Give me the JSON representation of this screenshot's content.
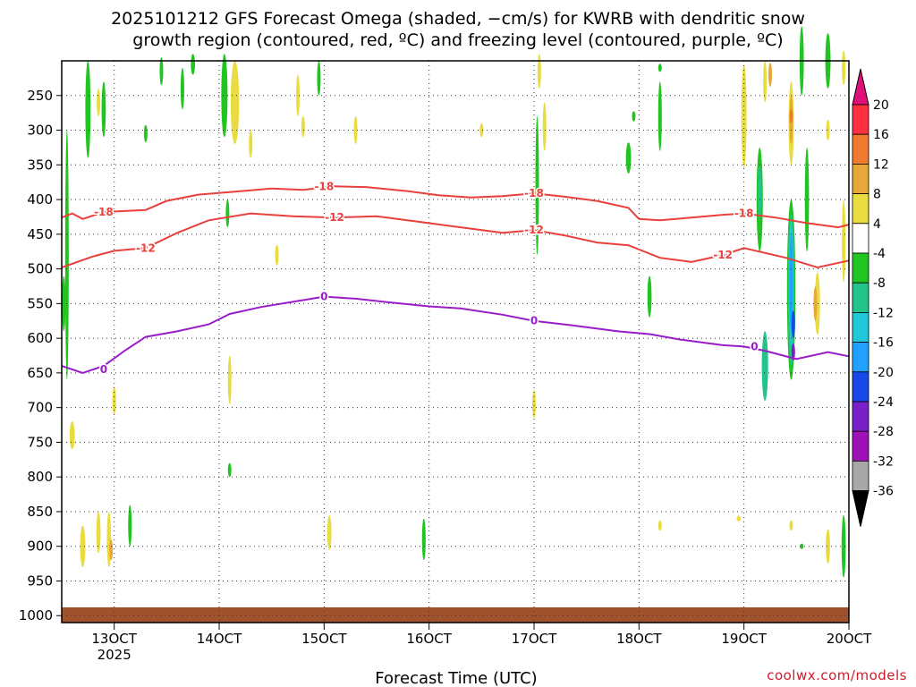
{
  "title": {
    "line1": "2025101212 GFS Forecast Omega (shaded, −cm/s) for KWRB with dendritic snow",
    "line2": "growth region (contoured, red, ºC) and freezing level (contoured, purple, ºC)"
  },
  "credit": "coolwx.com/models",
  "chart_data": {
    "type": "heatmap",
    "xlabel": "Forecast Time (UTC)",
    "x_ticks": [
      {
        "label": "13OCT",
        "sub": "2025",
        "day": 13
      },
      {
        "label": "14OCT",
        "day": 14
      },
      {
        "label": "15OCT",
        "day": 15
      },
      {
        "label": "16OCT",
        "day": 16
      },
      {
        "label": "17OCT",
        "day": 17
      },
      {
        "label": "18OCT",
        "day": 18
      },
      {
        "label": "19OCT",
        "day": 19
      },
      {
        "label": "20OCT",
        "day": 20
      }
    ],
    "xlim": [
      12.5,
      20.0
    ],
    "y_ticks": [
      250,
      300,
      350,
      400,
      450,
      500,
      550,
      600,
      650,
      700,
      750,
      800,
      850,
      900,
      950,
      1000
    ],
    "ylim": [
      200,
      1010
    ],
    "y_axis": "pressure (hPa), inverted",
    "grid": "dotted",
    "colorbar": {
      "levels": [
        20,
        16,
        12,
        8,
        4,
        -4,
        -8,
        -12,
        -16,
        -20,
        -24,
        -28,
        -32,
        -36
      ],
      "colors": [
        "#ff3040",
        "#f07a30",
        "#e8a838",
        "#e8dc40",
        "#ffffff",
        "#22c422",
        "#22c48a",
        "#20c8d8",
        "#20a0ff",
        "#1848e8",
        "#7a20c8",
        "#a010b8",
        "#a8a8a8"
      ],
      "top_arrow_color": "#e0107a",
      "bottom_arrow_color": "#000000"
    },
    "contours": [
      {
        "label": "-18",
        "color": "#e8403c",
        "points": [
          [
            12.5,
            426
          ],
          [
            12.6,
            420
          ],
          [
            12.7,
            428
          ],
          [
            12.9,
            418
          ],
          [
            13.3,
            415
          ],
          [
            13.5,
            402
          ],
          [
            13.8,
            393
          ],
          [
            14.2,
            388
          ],
          [
            14.5,
            384
          ],
          [
            14.8,
            386
          ],
          [
            15.1,
            381
          ],
          [
            15.4,
            382
          ],
          [
            15.8,
            388
          ],
          [
            16.1,
            394
          ],
          [
            16.4,
            397
          ],
          [
            16.7,
            395
          ],
          [
            17.0,
            391
          ],
          [
            17.3,
            396
          ],
          [
            17.6,
            402
          ],
          [
            17.9,
            412
          ],
          [
            18.0,
            428
          ],
          [
            18.2,
            430
          ],
          [
            18.5,
            426
          ],
          [
            18.8,
            422
          ],
          [
            19.0,
            420
          ],
          [
            19.3,
            426
          ],
          [
            19.6,
            434
          ],
          [
            19.9,
            440
          ],
          [
            20.0,
            436
          ]
        ],
        "labels": [
          [
            15.0,
            381
          ],
          [
            17.0,
            391
          ],
          [
            19.0,
            420
          ],
          [
            12.9,
            418
          ]
        ]
      },
      {
        "label": "-12",
        "color": "#e8403c",
        "points": [
          [
            12.5,
            498
          ],
          [
            12.8,
            482
          ],
          [
            13.0,
            474
          ],
          [
            13.3,
            470
          ],
          [
            13.6,
            448
          ],
          [
            13.9,
            430
          ],
          [
            14.3,
            420
          ],
          [
            14.7,
            424
          ],
          [
            15.1,
            426
          ],
          [
            15.5,
            424
          ],
          [
            15.9,
            432
          ],
          [
            16.3,
            440
          ],
          [
            16.7,
            448
          ],
          [
            17.0,
            444
          ],
          [
            17.3,
            452
          ],
          [
            17.6,
            462
          ],
          [
            17.9,
            466
          ],
          [
            18.2,
            484
          ],
          [
            18.5,
            490
          ],
          [
            18.8,
            480
          ],
          [
            19.0,
            470
          ],
          [
            19.4,
            484
          ],
          [
            19.7,
            498
          ],
          [
            20.0,
            488
          ]
        ],
        "labels": [
          [
            15.1,
            426
          ],
          [
            17.0,
            444
          ],
          [
            18.8,
            480
          ],
          [
            13.3,
            470
          ]
        ]
      },
      {
        "label": "0",
        "color": "#9a1cc8",
        "points": [
          [
            12.5,
            640
          ],
          [
            12.7,
            650
          ],
          [
            12.9,
            640
          ],
          [
            13.1,
            618
          ],
          [
            13.3,
            598
          ],
          [
            13.6,
            590
          ],
          [
            13.9,
            580
          ],
          [
            14.1,
            565
          ],
          [
            14.4,
            555
          ],
          [
            14.8,
            545
          ],
          [
            15.0,
            540
          ],
          [
            15.3,
            543
          ],
          [
            15.6,
            548
          ],
          [
            16.0,
            554
          ],
          [
            16.3,
            557
          ],
          [
            16.7,
            566
          ],
          [
            17.0,
            575
          ],
          [
            17.4,
            582
          ],
          [
            17.8,
            590
          ],
          [
            18.1,
            594
          ],
          [
            18.4,
            602
          ],
          [
            18.8,
            610
          ],
          [
            19.0,
            612
          ],
          [
            19.2,
            618
          ],
          [
            19.5,
            630
          ],
          [
            19.8,
            620
          ],
          [
            20.0,
            626
          ]
        ],
        "labels": [
          [
            15.0,
            540
          ],
          [
            17.0,
            575
          ],
          [
            19.1,
            612
          ],
          [
            12.9,
            645
          ]
        ]
      }
    ],
    "blobs": [
      {
        "x": 12.55,
        "p": 480,
        "w": 0.03,
        "h": 360,
        "color": "#22c422"
      },
      {
        "x": 12.9,
        "p": 270,
        "w": 0.04,
        "h": 80,
        "color": "#22c422"
      },
      {
        "x": 12.75,
        "p": 270,
        "w": 0.05,
        "h": 140,
        "color": "#22c422"
      },
      {
        "x": 12.6,
        "p": 740,
        "w": 0.05,
        "h": 40,
        "color": "#e8dc40"
      },
      {
        "x": 12.7,
        "p": 900,
        "w": 0.05,
        "h": 60,
        "color": "#e8dc40"
      },
      {
        "x": 12.85,
        "p": 880,
        "w": 0.04,
        "h": 60,
        "color": "#e8dc40"
      },
      {
        "x": 12.95,
        "p": 890,
        "w": 0.04,
        "h": 80,
        "color": "#e8dc40"
      },
      {
        "x": 12.97,
        "p": 905,
        "w": 0.015,
        "h": 30,
        "color": "#e8a838"
      },
      {
        "x": 12.85,
        "p": 260,
        "w": 0.02,
        "h": 40,
        "color": "#e8dc40"
      },
      {
        "x": 13.0,
        "p": 690,
        "w": 0.02,
        "h": 40,
        "color": "#e8dc40"
      },
      {
        "x": 13.15,
        "p": 870,
        "w": 0.03,
        "h": 60,
        "color": "#22c422"
      },
      {
        "x": 13.3,
        "p": 305,
        "w": 0.02,
        "h": 25,
        "color": "#22c422"
      },
      {
        "x": 13.45,
        "p": 215,
        "w": 0.025,
        "h": 40,
        "color": "#22c422"
      },
      {
        "x": 13.65,
        "p": 240,
        "w": 0.03,
        "h": 60,
        "color": "#22c422"
      },
      {
        "x": 13.75,
        "p": 205,
        "w": 0.04,
        "h": 30,
        "color": "#22c422"
      },
      {
        "x": 14.05,
        "p": 250,
        "w": 0.06,
        "h": 120,
        "color": "#22c422"
      },
      {
        "x": 14.15,
        "p": 260,
        "w": 0.08,
        "h": 120,
        "color": "#e8dc40"
      },
      {
        "x": 14.1,
        "p": 660,
        "w": 0.03,
        "h": 70,
        "color": "#e8dc40"
      },
      {
        "x": 14.1,
        "p": 790,
        "w": 0.015,
        "h": 20,
        "color": "#22c422"
      },
      {
        "x": 14.3,
        "p": 320,
        "w": 0.015,
        "h": 40,
        "color": "#e8dc40"
      },
      {
        "x": 14.55,
        "p": 480,
        "w": 0.01,
        "h": 30,
        "color": "#e8dc40"
      },
      {
        "x": 14.8,
        "p": 295,
        "w": 0.015,
        "h": 30,
        "color": "#e8dc40"
      },
      {
        "x": 14.75,
        "p": 250,
        "w": 0.015,
        "h": 60,
        "color": "#e8dc40"
      },
      {
        "x": 14.95,
        "p": 225,
        "w": 0.02,
        "h": 50,
        "color": "#22c422"
      },
      {
        "x": 15.05,
        "p": 880,
        "w": 0.04,
        "h": 50,
        "color": "#e8dc40"
      },
      {
        "x": 15.3,
        "p": 300,
        "w": 0.015,
        "h": 40,
        "color": "#e8dc40"
      },
      {
        "x": 15.95,
        "p": 890,
        "w": 0.035,
        "h": 60,
        "color": "#22c422"
      },
      {
        "x": 16.5,
        "p": 300,
        "w": 0.01,
        "h": 20,
        "color": "#e8dc40"
      },
      {
        "x": 17.05,
        "p": 215,
        "w": 0.03,
        "h": 50,
        "color": "#e8dc40"
      },
      {
        "x": 17.1,
        "p": 295,
        "w": 0.03,
        "h": 70,
        "color": "#e8dc40"
      },
      {
        "x": 17.0,
        "p": 695,
        "w": 0.015,
        "h": 40,
        "color": "#e8dc40"
      },
      {
        "x": 17.9,
        "p": 340,
        "w": 0.05,
        "h": 45,
        "color": "#22c422"
      },
      {
        "x": 17.95,
        "p": 280,
        "w": 0.03,
        "h": 15,
        "color": "#22c422"
      },
      {
        "x": 18.1,
        "p": 540,
        "w": 0.04,
        "h": 60,
        "color": "#22c422"
      },
      {
        "x": 18.2,
        "p": 870,
        "w": 0.03,
        "h": 15,
        "color": "#e8dc40"
      },
      {
        "x": 18.2,
        "p": 280,
        "w": 0.035,
        "h": 100,
        "color": "#22c422"
      },
      {
        "x": 18.2,
        "p": 210,
        "w": 0.03,
        "h": 12,
        "color": "#22c422"
      },
      {
        "x": 18.95,
        "p": 860,
        "w": 0.04,
        "h": 8,
        "color": "#e8dc40"
      },
      {
        "x": 19.0,
        "p": 280,
        "w": 0.05,
        "h": 150,
        "color": "#e8dc40"
      },
      {
        "x": 19.15,
        "p": 400,
        "w": 0.06,
        "h": 150,
        "color": "#22c422"
      },
      {
        "x": 19.15,
        "p": 390,
        "w": 0.03,
        "h": 80,
        "color": "#22c48a"
      },
      {
        "x": 19.2,
        "p": 640,
        "w": 0.06,
        "h": 100,
        "color": "#22c48a"
      },
      {
        "x": 19.2,
        "p": 230,
        "w": 0.03,
        "h": 60,
        "color": "#e8dc40"
      },
      {
        "x": 19.25,
        "p": 220,
        "w": 0.03,
        "h": 35,
        "color": "#e8a838"
      },
      {
        "x": 19.45,
        "p": 530,
        "w": 0.08,
        "h": 260,
        "color": "#22c422"
      },
      {
        "x": 19.45,
        "p": 530,
        "w": 0.06,
        "h": 220,
        "color": "#22c48a"
      },
      {
        "x": 19.45,
        "p": 520,
        "w": 0.045,
        "h": 180,
        "color": "#20c8d8"
      },
      {
        "x": 19.45,
        "p": 520,
        "w": 0.03,
        "h": 140,
        "color": "#20a0ff"
      },
      {
        "x": 19.47,
        "p": 580,
        "w": 0.015,
        "h": 40,
        "color": "#1848e8"
      },
      {
        "x": 19.47,
        "p": 620,
        "w": 0.012,
        "h": 25,
        "color": "#7a20c8"
      },
      {
        "x": 19.45,
        "p": 290,
        "w": 0.05,
        "h": 120,
        "color": "#e8dc40"
      },
      {
        "x": 19.45,
        "p": 285,
        "w": 0.03,
        "h": 70,
        "color": "#e8a838"
      },
      {
        "x": 19.45,
        "p": 280,
        "w": 0.015,
        "h": 20,
        "color": "#f07a30"
      },
      {
        "x": 19.55,
        "p": 200,
        "w": 0.04,
        "h": 100,
        "color": "#22c422"
      },
      {
        "x": 19.6,
        "p": 400,
        "w": 0.04,
        "h": 150,
        "color": "#22c422"
      },
      {
        "x": 19.7,
        "p": 550,
        "w": 0.05,
        "h": 90,
        "color": "#e8dc40"
      },
      {
        "x": 19.68,
        "p": 550,
        "w": 0.03,
        "h": 50,
        "color": "#e8a838"
      },
      {
        "x": 19.8,
        "p": 200,
        "w": 0.05,
        "h": 80,
        "color": "#22c422"
      },
      {
        "x": 19.8,
        "p": 300,
        "w": 0.025,
        "h": 30,
        "color": "#e8dc40"
      },
      {
        "x": 19.45,
        "p": 870,
        "w": 0.03,
        "h": 15,
        "color": "#e8dc40"
      },
      {
        "x": 19.55,
        "p": 900,
        "w": 0.03,
        "h": 8,
        "color": "#22c422"
      },
      {
        "x": 19.8,
        "p": 900,
        "w": 0.04,
        "h": 50,
        "color": "#e8dc40"
      },
      {
        "x": 19.95,
        "p": 900,
        "w": 0.04,
        "h": 90,
        "color": "#22c422"
      },
      {
        "x": 19.95,
        "p": 210,
        "w": 0.02,
        "h": 50,
        "color": "#e8dc40"
      },
      {
        "x": 19.95,
        "p": 460,
        "w": 0.03,
        "h": 120,
        "color": "#e8dc40"
      },
      {
        "x": 17.03,
        "p": 380,
        "w": 0.004,
        "h": 200,
        "color": "#22c422"
      },
      {
        "x": 14.08,
        "p": 420,
        "w": 0.005,
        "h": 40,
        "color": "#22c422"
      },
      {
        "x": 12.52,
        "p": 550,
        "w": 0.015,
        "h": 80,
        "color": "#22c422"
      }
    ],
    "surface_color": "#a0522d"
  }
}
